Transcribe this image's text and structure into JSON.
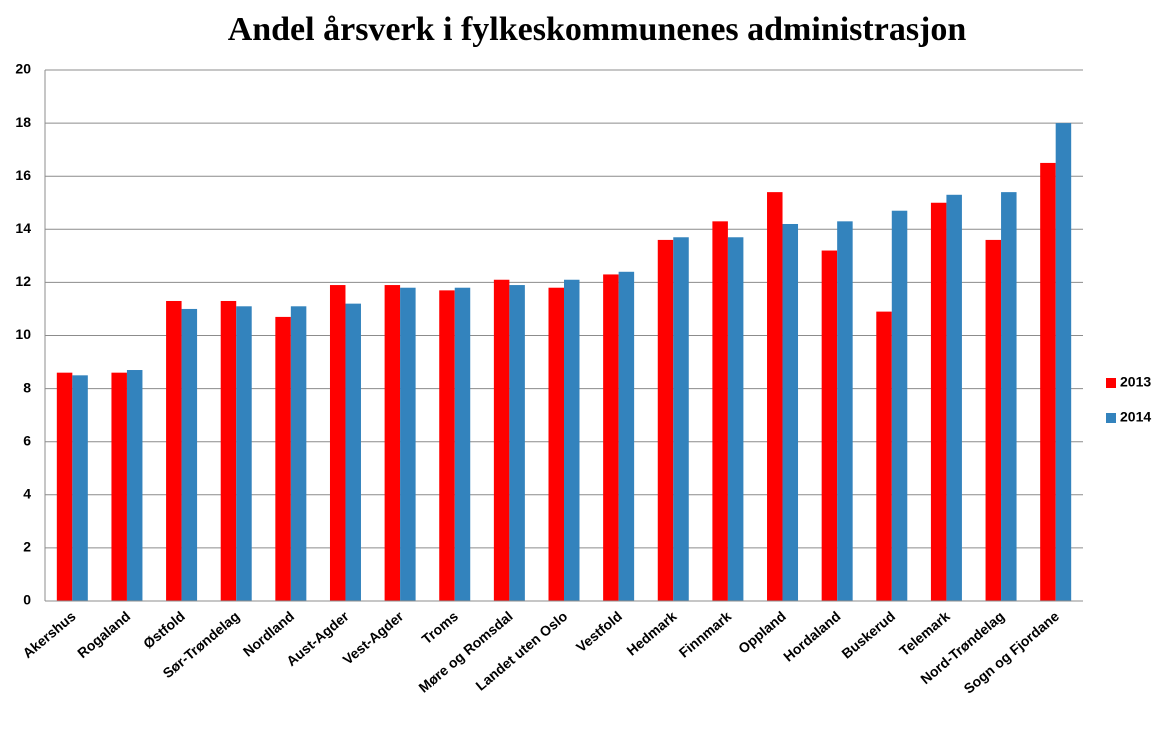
{
  "chart_data": {
    "type": "bar",
    "title": "Andel årsverk i fylkeskommunenes administrasjon",
    "categories": [
      "Akershus",
      "Rogaland",
      "Østfold",
      "Sør-Trøndelag",
      "Nordland",
      "Aust-Agder",
      "Vest-Agder",
      "Troms",
      "Møre og Romsdal",
      "Landet uten Oslo",
      "Vestfold",
      "Hedmark",
      "Finnmark",
      "Oppland",
      "Hordaland",
      "Buskerud",
      "Telemark",
      "Nord-Trøndelag",
      "Sogn og Fjordane"
    ],
    "series": [
      {
        "name": "2013",
        "color": "#ff0000",
        "values": [
          8.6,
          8.6,
          11.3,
          11.3,
          10.7,
          11.9,
          11.9,
          11.7,
          12.1,
          11.8,
          12.3,
          13.6,
          14.3,
          15.4,
          13.2,
          10.9,
          15.0,
          13.6,
          16.5
        ]
      },
      {
        "name": "2014",
        "color": "#3383bd",
        "values": [
          8.5,
          8.7,
          11.0,
          11.1,
          11.1,
          11.2,
          11.8,
          11.8,
          11.9,
          12.1,
          12.4,
          13.7,
          13.7,
          14.2,
          14.3,
          14.7,
          15.3,
          15.4,
          18.0
        ]
      }
    ],
    "ylim": [
      0,
      20
    ],
    "yticks": [
      0,
      2,
      4,
      6,
      8,
      10,
      12,
      14,
      16,
      18,
      20
    ],
    "grid": true,
    "legend": "right"
  }
}
